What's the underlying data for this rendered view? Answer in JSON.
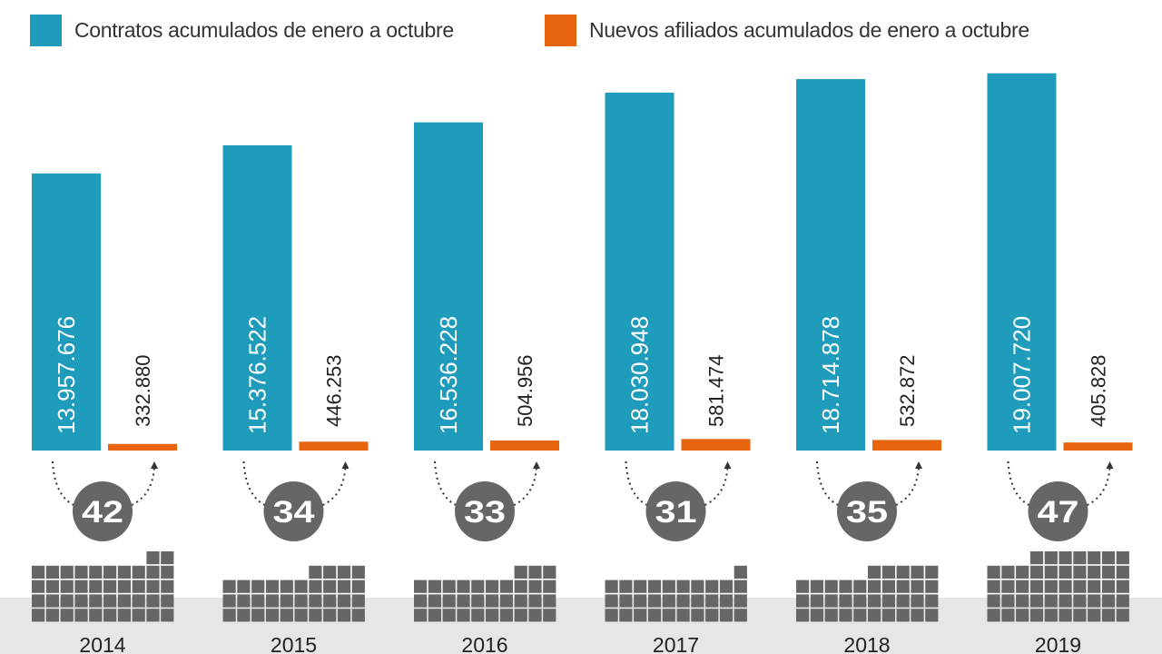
{
  "chart_data": {
    "type": "bar",
    "title": "",
    "categories": [
      "2014",
      "2015",
      "2016",
      "2017",
      "2018",
      "2019"
    ],
    "series": [
      {
        "name": "Contratos acumulados de enero a octubre",
        "color": "#1f9bbb",
        "values": [
          13957676,
          15376522,
          16536228,
          18030948,
          18714878,
          19007720
        ],
        "labels": [
          "13.957.676",
          "15.376.522",
          "16.536.228",
          "18.030.948",
          "18.714.878",
          "19.007.720"
        ]
      },
      {
        "name": "Nuevos afiliados acumulados de enero a octubre",
        "color": "#e8650f",
        "values": [
          332880,
          446253,
          504956,
          581474,
          532872,
          405828
        ],
        "labels": [
          "332.880",
          "446.253",
          "504.956",
          "581.474",
          "532.872",
          "405.828"
        ]
      }
    ],
    "ratio": {
      "values": [
        42,
        34,
        33,
        31,
        35,
        47
      ],
      "labels": [
        "42",
        "34",
        "33",
        "31",
        "35",
        "47"
      ],
      "color": "#666666"
    },
    "legend_position": "top",
    "grid": false
  }
}
